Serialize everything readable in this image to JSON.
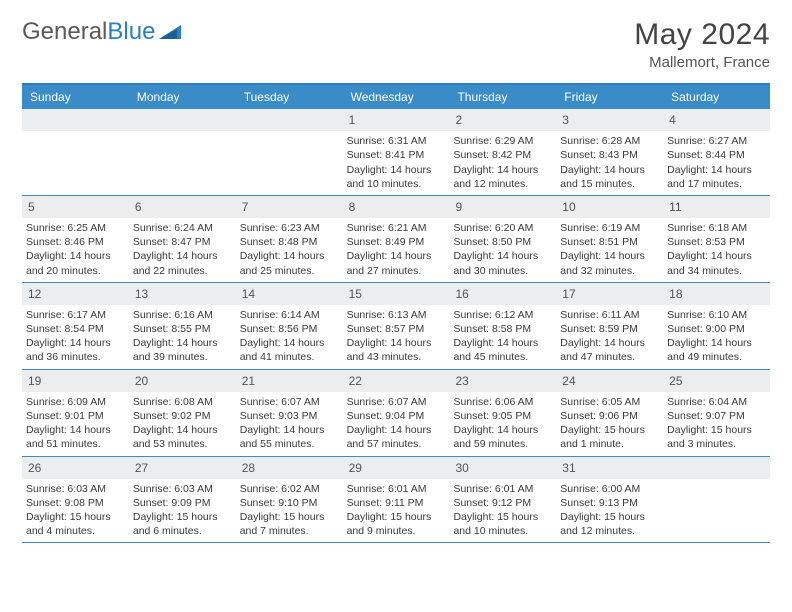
{
  "logo": {
    "text1": "General",
    "text2": "Blue"
  },
  "title": "May 2024",
  "location": "Mallemort, France",
  "colors": {
    "header_bg": "#3a8cc9",
    "header_text": "#ffffff",
    "border": "#3a8cc9",
    "daynum_bg": "#ecedef",
    "daynum_text": "#555555",
    "body_text": "#3a3a3a"
  },
  "day_names": [
    "Sunday",
    "Monday",
    "Tuesday",
    "Wednesday",
    "Thursday",
    "Friday",
    "Saturday"
  ],
  "weeks": [
    [
      {
        "n": "",
        "sr": "",
        "ss": "",
        "dl": ""
      },
      {
        "n": "",
        "sr": "",
        "ss": "",
        "dl": ""
      },
      {
        "n": "",
        "sr": "",
        "ss": "",
        "dl": ""
      },
      {
        "n": "1",
        "sr": "Sunrise: 6:31 AM",
        "ss": "Sunset: 8:41 PM",
        "dl": "Daylight: 14 hours and 10 minutes."
      },
      {
        "n": "2",
        "sr": "Sunrise: 6:29 AM",
        "ss": "Sunset: 8:42 PM",
        "dl": "Daylight: 14 hours and 12 minutes."
      },
      {
        "n": "3",
        "sr": "Sunrise: 6:28 AM",
        "ss": "Sunset: 8:43 PM",
        "dl": "Daylight: 14 hours and 15 minutes."
      },
      {
        "n": "4",
        "sr": "Sunrise: 6:27 AM",
        "ss": "Sunset: 8:44 PM",
        "dl": "Daylight: 14 hours and 17 minutes."
      }
    ],
    [
      {
        "n": "5",
        "sr": "Sunrise: 6:25 AM",
        "ss": "Sunset: 8:46 PM",
        "dl": "Daylight: 14 hours and 20 minutes."
      },
      {
        "n": "6",
        "sr": "Sunrise: 6:24 AM",
        "ss": "Sunset: 8:47 PM",
        "dl": "Daylight: 14 hours and 22 minutes."
      },
      {
        "n": "7",
        "sr": "Sunrise: 6:23 AM",
        "ss": "Sunset: 8:48 PM",
        "dl": "Daylight: 14 hours and 25 minutes."
      },
      {
        "n": "8",
        "sr": "Sunrise: 6:21 AM",
        "ss": "Sunset: 8:49 PM",
        "dl": "Daylight: 14 hours and 27 minutes."
      },
      {
        "n": "9",
        "sr": "Sunrise: 6:20 AM",
        "ss": "Sunset: 8:50 PM",
        "dl": "Daylight: 14 hours and 30 minutes."
      },
      {
        "n": "10",
        "sr": "Sunrise: 6:19 AM",
        "ss": "Sunset: 8:51 PM",
        "dl": "Daylight: 14 hours and 32 minutes."
      },
      {
        "n": "11",
        "sr": "Sunrise: 6:18 AM",
        "ss": "Sunset: 8:53 PM",
        "dl": "Daylight: 14 hours and 34 minutes."
      }
    ],
    [
      {
        "n": "12",
        "sr": "Sunrise: 6:17 AM",
        "ss": "Sunset: 8:54 PM",
        "dl": "Daylight: 14 hours and 36 minutes."
      },
      {
        "n": "13",
        "sr": "Sunrise: 6:16 AM",
        "ss": "Sunset: 8:55 PM",
        "dl": "Daylight: 14 hours and 39 minutes."
      },
      {
        "n": "14",
        "sr": "Sunrise: 6:14 AM",
        "ss": "Sunset: 8:56 PM",
        "dl": "Daylight: 14 hours and 41 minutes."
      },
      {
        "n": "15",
        "sr": "Sunrise: 6:13 AM",
        "ss": "Sunset: 8:57 PM",
        "dl": "Daylight: 14 hours and 43 minutes."
      },
      {
        "n": "16",
        "sr": "Sunrise: 6:12 AM",
        "ss": "Sunset: 8:58 PM",
        "dl": "Daylight: 14 hours and 45 minutes."
      },
      {
        "n": "17",
        "sr": "Sunrise: 6:11 AM",
        "ss": "Sunset: 8:59 PM",
        "dl": "Daylight: 14 hours and 47 minutes."
      },
      {
        "n": "18",
        "sr": "Sunrise: 6:10 AM",
        "ss": "Sunset: 9:00 PM",
        "dl": "Daylight: 14 hours and 49 minutes."
      }
    ],
    [
      {
        "n": "19",
        "sr": "Sunrise: 6:09 AM",
        "ss": "Sunset: 9:01 PM",
        "dl": "Daylight: 14 hours and 51 minutes."
      },
      {
        "n": "20",
        "sr": "Sunrise: 6:08 AM",
        "ss": "Sunset: 9:02 PM",
        "dl": "Daylight: 14 hours and 53 minutes."
      },
      {
        "n": "21",
        "sr": "Sunrise: 6:07 AM",
        "ss": "Sunset: 9:03 PM",
        "dl": "Daylight: 14 hours and 55 minutes."
      },
      {
        "n": "22",
        "sr": "Sunrise: 6:07 AM",
        "ss": "Sunset: 9:04 PM",
        "dl": "Daylight: 14 hours and 57 minutes."
      },
      {
        "n": "23",
        "sr": "Sunrise: 6:06 AM",
        "ss": "Sunset: 9:05 PM",
        "dl": "Daylight: 14 hours and 59 minutes."
      },
      {
        "n": "24",
        "sr": "Sunrise: 6:05 AM",
        "ss": "Sunset: 9:06 PM",
        "dl": "Daylight: 15 hours and 1 minute."
      },
      {
        "n": "25",
        "sr": "Sunrise: 6:04 AM",
        "ss": "Sunset: 9:07 PM",
        "dl": "Daylight: 15 hours and 3 minutes."
      }
    ],
    [
      {
        "n": "26",
        "sr": "Sunrise: 6:03 AM",
        "ss": "Sunset: 9:08 PM",
        "dl": "Daylight: 15 hours and 4 minutes."
      },
      {
        "n": "27",
        "sr": "Sunrise: 6:03 AM",
        "ss": "Sunset: 9:09 PM",
        "dl": "Daylight: 15 hours and 6 minutes."
      },
      {
        "n": "28",
        "sr": "Sunrise: 6:02 AM",
        "ss": "Sunset: 9:10 PM",
        "dl": "Daylight: 15 hours and 7 minutes."
      },
      {
        "n": "29",
        "sr": "Sunrise: 6:01 AM",
        "ss": "Sunset: 9:11 PM",
        "dl": "Daylight: 15 hours and 9 minutes."
      },
      {
        "n": "30",
        "sr": "Sunrise: 6:01 AM",
        "ss": "Sunset: 9:12 PM",
        "dl": "Daylight: 15 hours and 10 minutes."
      },
      {
        "n": "31",
        "sr": "Sunrise: 6:00 AM",
        "ss": "Sunset: 9:13 PM",
        "dl": "Daylight: 15 hours and 12 minutes."
      },
      {
        "n": "",
        "sr": "",
        "ss": "",
        "dl": ""
      }
    ]
  ]
}
